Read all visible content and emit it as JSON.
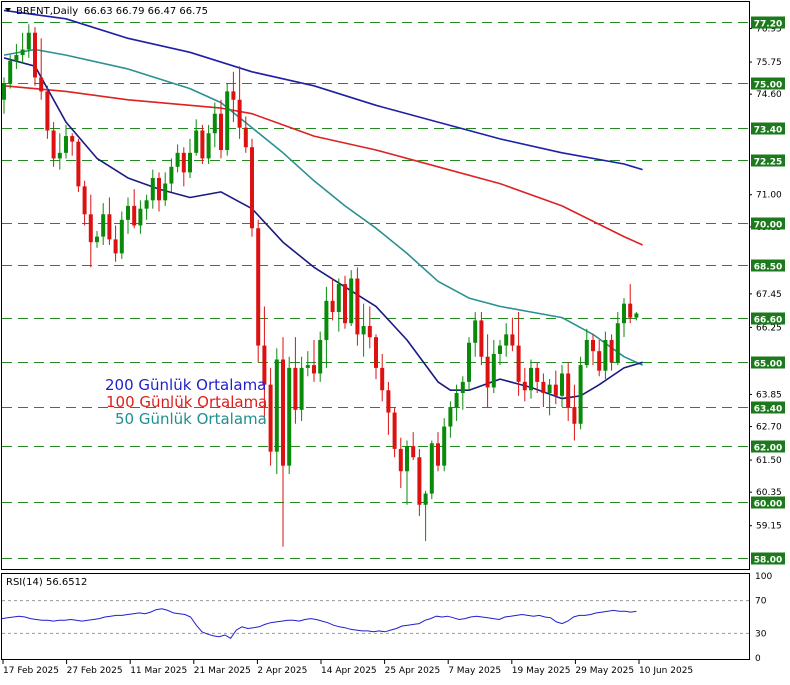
{
  "header": {
    "symbol": "BRENT,Daily",
    "ohlc": "66.63 66.79 66.47 66.75"
  },
  "legend": {
    "items": [
      {
        "label": "200 Günlük Ortalama",
        "color": "#1f1fcf"
      },
      {
        "label": "100 Günlük Ortalama",
        "color": "#e01d1d"
      },
      {
        "label": "50 Günlük Ortalama",
        "color": "#1f8f8f"
      }
    ]
  },
  "colors": {
    "up": "#0a8a0a",
    "down": "#dd1111",
    "ma200": "#1f1fa8",
    "ma100": "#dd2222",
    "ma50": "#2a9090",
    "ma20": "#1a1a80",
    "hline": "#228b22",
    "rsi": "#1f1fcf",
    "badge_bg": "#1c7a1c",
    "badge_text": "#ffffff"
  },
  "price_axis": {
    "labels": [
      "76.95",
      "75.75",
      "74.60",
      "71.00",
      "69.85",
      "67.45",
      "66.25",
      "63.85",
      "62.70",
      "61.50",
      "60.35",
      "59.15"
    ]
  },
  "levels": [
    77.2,
    75.0,
    73.4,
    72.25,
    70.0,
    68.5,
    66.6,
    65.0,
    63.4,
    62.0,
    60.0,
    58.0
  ],
  "level_labels": [
    "77.20",
    "75.00",
    "73.40",
    "72.25",
    "70.00",
    "68.50",
    "66.60",
    "65.00",
    "63.40",
    "62.00",
    "60.00",
    "58.00"
  ],
  "rsi_panel": {
    "title": "RSI(14) 56.6512",
    "axis_labels": [
      "100",
      "70",
      "30",
      "0"
    ],
    "levels": [
      70,
      30
    ],
    "values": [
      48,
      49,
      50,
      51,
      50,
      48,
      47,
      46,
      46,
      45,
      46,
      46,
      47,
      46,
      45,
      46,
      47,
      48,
      50,
      51,
      52,
      52,
      53,
      54,
      55,
      54,
      56,
      59,
      60,
      58,
      55,
      54,
      53,
      50,
      40,
      32,
      29,
      27,
      26,
      28,
      24,
      34,
      38,
      36,
      37,
      38,
      41,
      43,
      44,
      45,
      46,
      46,
      45,
      47,
      48,
      47,
      45,
      43,
      40,
      38,
      37,
      35,
      34,
      33,
      33,
      32,
      33,
      32,
      34,
      36,
      39,
      40,
      41,
      42,
      46,
      48,
      51,
      50,
      51,
      49,
      47,
      48,
      50,
      51,
      50,
      49,
      48,
      47,
      50,
      51,
      52,
      53,
      52,
      51,
      52,
      50,
      49,
      44,
      42,
      45,
      50,
      52,
      52,
      53,
      55,
      56,
      57,
      58,
      57,
      57,
      56,
      57
    ]
  },
  "date_axis": {
    "labels": [
      "17 Feb 2025",
      "27 Feb 2025",
      "11 Mar 2025",
      "21 Mar 2025",
      "2 Apr 2025",
      "14 Apr 2025",
      "25 Apr 2025",
      "7 May 2025",
      "19 May 2025",
      "29 May 2025",
      "10 Jun 2025"
    ]
  },
  "chart_data": {
    "type": "candlestick",
    "title": "BRENT,Daily",
    "ylim": [
      57.6,
      77.9
    ],
    "candles": [
      {
        "o": 74.4,
        "h": 75.2,
        "l": 73.9,
        "c": 75.0
      },
      {
        "o": 75.0,
        "h": 76.0,
        "l": 74.8,
        "c": 75.8
      },
      {
        "o": 75.8,
        "h": 76.4,
        "l": 75.5,
        "c": 76.0
      },
      {
        "o": 76.0,
        "h": 76.8,
        "l": 75.7,
        "c": 76.2
      },
      {
        "o": 76.2,
        "h": 77.1,
        "l": 75.9,
        "c": 76.8
      },
      {
        "o": 76.8,
        "h": 77.0,
        "l": 74.9,
        "c": 75.2
      },
      {
        "o": 75.2,
        "h": 76.6,
        "l": 74.4,
        "c": 74.7
      },
      {
        "o": 74.7,
        "h": 74.9,
        "l": 73.0,
        "c": 73.3
      },
      {
        "o": 73.3,
        "h": 73.6,
        "l": 72.0,
        "c": 72.3
      },
      {
        "o": 72.3,
        "h": 73.2,
        "l": 71.9,
        "c": 72.5
      },
      {
        "o": 72.5,
        "h": 73.5,
        "l": 72.3,
        "c": 73.1
      },
      {
        "o": 73.1,
        "h": 73.2,
        "l": 72.4,
        "c": 72.9
      },
      {
        "o": 72.9,
        "h": 73.0,
        "l": 71.1,
        "c": 71.3
      },
      {
        "o": 71.3,
        "h": 71.5,
        "l": 69.9,
        "c": 70.3
      },
      {
        "o": 70.3,
        "h": 71.0,
        "l": 68.4,
        "c": 69.3
      },
      {
        "o": 69.3,
        "h": 69.7,
        "l": 69.1,
        "c": 69.5
      },
      {
        "o": 69.5,
        "h": 70.7,
        "l": 69.2,
        "c": 70.3
      },
      {
        "o": 70.3,
        "h": 70.9,
        "l": 69.2,
        "c": 69.4
      },
      {
        "o": 69.4,
        "h": 69.9,
        "l": 68.6,
        "c": 68.9
      },
      {
        "o": 68.9,
        "h": 70.4,
        "l": 68.7,
        "c": 70.1
      },
      {
        "o": 70.1,
        "h": 70.9,
        "l": 69.6,
        "c": 70.6
      },
      {
        "o": 70.6,
        "h": 71.2,
        "l": 69.8,
        "c": 69.9
      },
      {
        "o": 69.9,
        "h": 70.8,
        "l": 69.6,
        "c": 70.5
      },
      {
        "o": 70.5,
        "h": 71.0,
        "l": 70.1,
        "c": 70.8
      },
      {
        "o": 70.8,
        "h": 71.9,
        "l": 70.5,
        "c": 71.6
      },
      {
        "o": 71.6,
        "h": 71.8,
        "l": 70.4,
        "c": 70.8
      },
      {
        "o": 70.8,
        "h": 71.8,
        "l": 70.6,
        "c": 71.4
      },
      {
        "o": 71.4,
        "h": 72.3,
        "l": 71.1,
        "c": 72.0
      },
      {
        "o": 72.0,
        "h": 72.8,
        "l": 71.8,
        "c": 72.5
      },
      {
        "o": 72.5,
        "h": 72.7,
        "l": 71.3,
        "c": 71.8
      },
      {
        "o": 71.8,
        "h": 73.0,
        "l": 71.6,
        "c": 72.5
      },
      {
        "o": 72.5,
        "h": 73.7,
        "l": 72.4,
        "c": 73.3
      },
      {
        "o": 73.3,
        "h": 73.5,
        "l": 72.1,
        "c": 72.3
      },
      {
        "o": 72.3,
        "h": 73.5,
        "l": 72.1,
        "c": 73.2
      },
      {
        "o": 73.2,
        "h": 74.3,
        "l": 72.7,
        "c": 73.9
      },
      {
        "o": 73.9,
        "h": 74.4,
        "l": 72.3,
        "c": 72.6
      },
      {
        "o": 72.6,
        "h": 75.0,
        "l": 72.4,
        "c": 74.7
      },
      {
        "o": 74.7,
        "h": 75.4,
        "l": 73.6,
        "c": 74.4
      },
      {
        "o": 74.4,
        "h": 75.6,
        "l": 73.0,
        "c": 73.4
      },
      {
        "o": 73.4,
        "h": 73.8,
        "l": 72.5,
        "c": 72.7
      },
      {
        "o": 72.7,
        "h": 73.0,
        "l": 69.5,
        "c": 69.8
      },
      {
        "o": 69.8,
        "h": 70.1,
        "l": 65.0,
        "c": 65.6
      },
      {
        "o": 65.6,
        "h": 67.0,
        "l": 63.0,
        "c": 64.2
      },
      {
        "o": 64.2,
        "h": 64.8,
        "l": 61.3,
        "c": 61.8
      },
      {
        "o": 61.8,
        "h": 65.5,
        "l": 61.0,
        "c": 65.1
      },
      {
        "o": 65.1,
        "h": 65.9,
        "l": 58.4,
        "c": 61.3
      },
      {
        "o": 61.3,
        "h": 65.2,
        "l": 61.0,
        "c": 64.8
      },
      {
        "o": 64.8,
        "h": 65.9,
        "l": 62.8,
        "c": 63.3
      },
      {
        "o": 63.3,
        "h": 65.2,
        "l": 62.9,
        "c": 64.8
      },
      {
        "o": 64.8,
        "h": 65.4,
        "l": 64.5,
        "c": 64.9
      },
      {
        "o": 64.9,
        "h": 65.8,
        "l": 64.3,
        "c": 64.6
      },
      {
        "o": 64.6,
        "h": 66.1,
        "l": 64.3,
        "c": 65.8
      },
      {
        "o": 65.8,
        "h": 67.7,
        "l": 64.8,
        "c": 67.2
      },
      {
        "o": 67.2,
        "h": 68.0,
        "l": 66.5,
        "c": 66.8
      },
      {
        "o": 66.8,
        "h": 68.0,
        "l": 66.1,
        "c": 67.8
      },
      {
        "o": 67.8,
        "h": 68.1,
        "l": 66.2,
        "c": 66.4
      },
      {
        "o": 66.4,
        "h": 68.3,
        "l": 66.3,
        "c": 68.0
      },
      {
        "o": 68.0,
        "h": 68.4,
        "l": 65.6,
        "c": 66.0
      },
      {
        "o": 66.0,
        "h": 67.1,
        "l": 65.2,
        "c": 66.3
      },
      {
        "o": 66.3,
        "h": 67.0,
        "l": 65.5,
        "c": 65.9
      },
      {
        "o": 65.9,
        "h": 66.0,
        "l": 64.4,
        "c": 64.8
      },
      {
        "o": 64.8,
        "h": 65.3,
        "l": 63.6,
        "c": 64.0
      },
      {
        "o": 64.0,
        "h": 64.3,
        "l": 62.4,
        "c": 63.2
      },
      {
        "o": 63.2,
        "h": 63.4,
        "l": 61.6,
        "c": 61.9
      },
      {
        "o": 61.9,
        "h": 62.3,
        "l": 60.5,
        "c": 61.1
      },
      {
        "o": 61.1,
        "h": 62.2,
        "l": 59.9,
        "c": 62.0
      },
      {
        "o": 62.0,
        "h": 62.5,
        "l": 61.5,
        "c": 61.6
      },
      {
        "o": 61.6,
        "h": 61.9,
        "l": 59.5,
        "c": 59.9
      },
      {
        "o": 59.9,
        "h": 60.4,
        "l": 58.6,
        "c": 60.3
      },
      {
        "o": 60.3,
        "h": 62.2,
        "l": 60.1,
        "c": 62.1
      },
      {
        "o": 62.1,
        "h": 62.5,
        "l": 61.1,
        "c": 61.3
      },
      {
        "o": 61.3,
        "h": 63.0,
        "l": 61.1,
        "c": 62.7
      },
      {
        "o": 62.7,
        "h": 63.6,
        "l": 62.3,
        "c": 63.4
      },
      {
        "o": 63.4,
        "h": 64.2,
        "l": 62.9,
        "c": 63.9
      },
      {
        "o": 63.9,
        "h": 64.5,
        "l": 63.3,
        "c": 64.3
      },
      {
        "o": 64.3,
        "h": 65.9,
        "l": 64.0,
        "c": 65.7
      },
      {
        "o": 65.7,
        "h": 66.8,
        "l": 65.2,
        "c": 66.5
      },
      {
        "o": 66.5,
        "h": 66.8,
        "l": 64.9,
        "c": 65.2
      },
      {
        "o": 65.2,
        "h": 66.0,
        "l": 63.4,
        "c": 64.1
      },
      {
        "o": 64.1,
        "h": 65.8,
        "l": 63.9,
        "c": 65.3
      },
      {
        "o": 65.3,
        "h": 65.8,
        "l": 64.9,
        "c": 65.6
      },
      {
        "o": 65.6,
        "h": 66.4,
        "l": 65.2,
        "c": 66.0
      },
      {
        "o": 66.0,
        "h": 66.6,
        "l": 65.4,
        "c": 65.6
      },
      {
        "o": 65.6,
        "h": 66.8,
        "l": 63.8,
        "c": 64.3
      },
      {
        "o": 64.3,
        "h": 64.8,
        "l": 63.6,
        "c": 64.0
      },
      {
        "o": 64.0,
        "h": 65.1,
        "l": 63.7,
        "c": 64.8
      },
      {
        "o": 64.8,
        "h": 65.0,
        "l": 63.9,
        "c": 64.3
      },
      {
        "o": 64.3,
        "h": 64.6,
        "l": 63.4,
        "c": 63.9
      },
      {
        "o": 63.9,
        "h": 64.4,
        "l": 63.1,
        "c": 64.2
      },
      {
        "o": 64.2,
        "h": 64.7,
        "l": 63.5,
        "c": 63.8
      },
      {
        "o": 63.8,
        "h": 64.9,
        "l": 63.4,
        "c": 64.6
      },
      {
        "o": 64.6,
        "h": 65.0,
        "l": 62.9,
        "c": 63.4
      },
      {
        "o": 63.4,
        "h": 64.2,
        "l": 62.2,
        "c": 62.8
      },
      {
        "o": 62.8,
        "h": 65.2,
        "l": 62.6,
        "c": 64.9
      },
      {
        "o": 64.9,
        "h": 66.2,
        "l": 64.8,
        "c": 65.8
      },
      {
        "o": 65.8,
        "h": 66.0,
        "l": 64.9,
        "c": 65.4
      },
      {
        "o": 65.4,
        "h": 65.8,
        "l": 64.5,
        "c": 64.7
      },
      {
        "o": 64.7,
        "h": 66.1,
        "l": 64.4,
        "c": 65.8
      },
      {
        "o": 65.8,
        "h": 66.0,
        "l": 64.7,
        "c": 65.0
      },
      {
        "o": 65.0,
        "h": 66.8,
        "l": 64.9,
        "c": 66.4
      },
      {
        "o": 66.4,
        "h": 67.3,
        "l": 65.9,
        "c": 67.1
      },
      {
        "o": 67.1,
        "h": 67.8,
        "l": 66.4,
        "c": 66.6
      },
      {
        "o": 66.6,
        "h": 66.8,
        "l": 66.5,
        "c": 66.75
      }
    ],
    "moving_averages": {
      "ma200": [
        [
          0,
          77.6
        ],
        [
          10,
          77.3
        ],
        [
          20,
          76.6
        ],
        [
          30,
          76.1
        ],
        [
          40,
          75.4
        ],
        [
          50,
          74.9
        ],
        [
          60,
          74.2
        ],
        [
          70,
          73.6
        ],
        [
          80,
          73.0
        ],
        [
          90,
          72.5
        ],
        [
          100,
          72.1
        ],
        [
          103,
          71.9
        ]
      ],
      "ma100": [
        [
          0,
          74.9
        ],
        [
          10,
          74.7
        ],
        [
          20,
          74.4
        ],
        [
          30,
          74.2
        ],
        [
          35,
          74.1
        ],
        [
          40,
          73.9
        ],
        [
          50,
          73.1
        ],
        [
          60,
          72.6
        ],
        [
          70,
          72.0
        ],
        [
          80,
          71.4
        ],
        [
          90,
          70.6
        ],
        [
          100,
          69.5
        ],
        [
          103,
          69.2
        ]
      ],
      "ma50": [
        [
          0,
          76.0
        ],
        [
          5,
          76.2
        ],
        [
          10,
          76.0
        ],
        [
          20,
          75.5
        ],
        [
          30,
          74.8
        ],
        [
          35,
          74.3
        ],
        [
          40,
          73.4
        ],
        [
          45,
          72.5
        ],
        [
          50,
          71.5
        ],
        [
          55,
          70.6
        ],
        [
          60,
          69.8
        ],
        [
          65,
          68.9
        ],
        [
          70,
          67.9
        ],
        [
          75,
          67.3
        ],
        [
          80,
          67.0
        ],
        [
          85,
          66.8
        ],
        [
          90,
          66.6
        ],
        [
          95,
          66.0
        ],
        [
          100,
          65.2
        ],
        [
          103,
          64.9
        ]
      ],
      "ma20": [
        [
          0,
          75.9
        ],
        [
          5,
          75.6
        ],
        [
          10,
          73.6
        ],
        [
          15,
          72.3
        ],
        [
          20,
          71.6
        ],
        [
          25,
          71.2
        ],
        [
          30,
          70.9
        ],
        [
          35,
          71.1
        ],
        [
          40,
          70.5
        ],
        [
          45,
          69.3
        ],
        [
          50,
          68.4
        ],
        [
          55,
          67.7
        ],
        [
          60,
          67.0
        ],
        [
          65,
          65.8
        ],
        [
          70,
          64.3
        ],
        [
          72,
          64.0
        ],
        [
          75,
          64.0
        ],
        [
          80,
          64.4
        ],
        [
          85,
          64.1
        ],
        [
          90,
          63.7
        ],
        [
          93,
          63.8
        ],
        [
          96,
          64.2
        ],
        [
          100,
          64.8
        ],
        [
          103,
          65.0
        ]
      ]
    }
  }
}
